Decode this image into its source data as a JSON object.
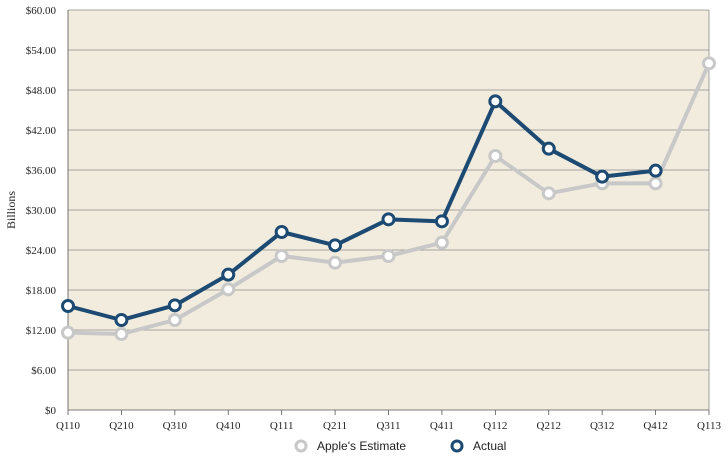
{
  "chart_data": {
    "type": "line",
    "title": "",
    "xlabel": "",
    "ylabel": "Billions",
    "ylim": [
      0,
      60
    ],
    "y_ticks": [
      {
        "value": 0,
        "label": "$0"
      },
      {
        "value": 6,
        "label": "$6.00"
      },
      {
        "value": 12,
        "label": "$12.00"
      },
      {
        "value": 18,
        "label": "$18.00"
      },
      {
        "value": 24,
        "label": "$24.00"
      },
      {
        "value": 30,
        "label": "$30.00"
      },
      {
        "value": 36,
        "label": "$36.00"
      },
      {
        "value": 42,
        "label": "$42.00"
      },
      {
        "value": 48,
        "label": "$48.00"
      },
      {
        "value": 54,
        "label": "$54.00"
      },
      {
        "value": 60,
        "label": "$60.00"
      }
    ],
    "categories": [
      "Q110",
      "Q210",
      "Q310",
      "Q410",
      "Q111",
      "Q211",
      "Q311",
      "Q411",
      "Q112",
      "Q212",
      "Q312",
      "Q412",
      "Q113"
    ],
    "series": [
      {
        "name": "Apple's Estimate",
        "color": "#c8c8c8",
        "values": [
          11.6,
          11.4,
          13.5,
          18.1,
          23.1,
          22.1,
          23.1,
          25.1,
          38.1,
          32.5,
          34.0,
          34.0,
          52.0
        ]
      },
      {
        "name": "Actual",
        "color": "#1c4a72",
        "values": [
          15.6,
          13.5,
          15.7,
          20.3,
          26.7,
          24.7,
          28.6,
          28.3,
          46.3,
          39.2,
          35.0,
          35.9,
          null
        ]
      }
    ],
    "grid": true,
    "legend_position": "bottom-center",
    "colors": {
      "plot_background": "#f1ecdd",
      "grid_line": "#8c8c8c",
      "axis_line": "#555555"
    }
  }
}
